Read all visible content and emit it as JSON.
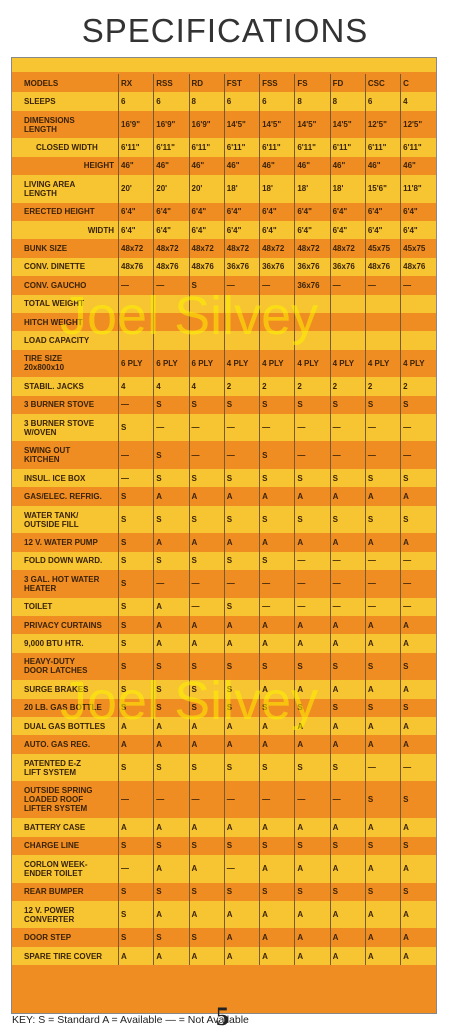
{
  "header": {
    "title": "SPECIFICATIONS"
  },
  "table": {
    "columns": [
      "MODELS",
      "RX",
      "RSS",
      "RD",
      "FST",
      "FSS",
      "FS",
      "FD",
      "CSC",
      "C"
    ],
    "rows": [
      {
        "label": "SLEEPS",
        "cells": [
          "6",
          "6",
          "8",
          "6",
          "6",
          "8",
          "8",
          "6",
          "4"
        ]
      },
      {
        "label": "DIMENSIONS\nLENGTH",
        "cells": [
          "16'9\"",
          "16'9\"",
          "16'9\"",
          "14'5\"",
          "14'5\"",
          "14'5\"",
          "14'5\"",
          "12'5\"",
          "12'5\""
        ]
      },
      {
        "label": "CLOSED WIDTH",
        "cells": [
          "6'11\"",
          "6'11\"",
          "6'11\"",
          "6'11\"",
          "6'11\"",
          "6'11\"",
          "6'11\"",
          "6'11\"",
          "6'11\""
        ]
      },
      {
        "label": "HEIGHT",
        "cells": [
          "46\"",
          "46\"",
          "46\"",
          "46\"",
          "46\"",
          "46\"",
          "46\"",
          "46\"",
          "46\""
        ]
      },
      {
        "label": "LIVING AREA\nLENGTH",
        "cells": [
          "20'",
          "20'",
          "20'",
          "18'",
          "18'",
          "18'",
          "18'",
          "15'6\"",
          "11'8\""
        ]
      },
      {
        "label": "ERECTED HEIGHT",
        "cells": [
          "6'4\"",
          "6'4\"",
          "6'4\"",
          "6'4\"",
          "6'4\"",
          "6'4\"",
          "6'4\"",
          "6'4\"",
          "6'4\""
        ]
      },
      {
        "label": "WIDTH",
        "cells": [
          "6'4\"",
          "6'4\"",
          "6'4\"",
          "6'4\"",
          "6'4\"",
          "6'4\"",
          "6'4\"",
          "6'4\"",
          "6'4\""
        ]
      },
      {
        "label": "BUNK SIZE",
        "cells": [
          "48x72",
          "48x72",
          "48x72",
          "48x72",
          "48x72",
          "48x72",
          "48x72",
          "45x75",
          "45x75"
        ]
      },
      {
        "label": "CONV. DINETTE",
        "cells": [
          "48x76",
          "48x76",
          "48x76",
          "36x76",
          "36x76",
          "36x76",
          "36x76",
          "48x76",
          "48x76"
        ]
      },
      {
        "label": "CONV. GAUCHO",
        "cells": [
          "—",
          "—",
          "S",
          "—",
          "—",
          "36x76",
          "—",
          "—",
          "—"
        ]
      },
      {
        "label": "TOTAL WEIGHT",
        "cells": []
      },
      {
        "label": "HITCH WEIGHT",
        "cells": []
      },
      {
        "label": "LOAD CAPACITY",
        "cells": []
      },
      {
        "label": "TIRE SIZE\n20x800x10",
        "cells": [
          "6 PLY",
          "6 PLY",
          "6 PLY",
          "4 PLY",
          "4 PLY",
          "4 PLY",
          "4 PLY",
          "4 PLY",
          "4 PLY"
        ]
      },
      {
        "label": "STABIL. JACKS",
        "cells": [
          "4",
          "4",
          "4",
          "2",
          "2",
          "2",
          "2",
          "2",
          "2"
        ]
      },
      {
        "label": "3 BURNER STOVE",
        "cells": [
          "—",
          "S",
          "S",
          "S",
          "S",
          "S",
          "S",
          "S",
          "S"
        ]
      },
      {
        "label": "3 BURNER STOVE\nW/OVEN",
        "cells": [
          "S",
          "—",
          "—",
          "—",
          "—",
          "—",
          "—",
          "—",
          "—"
        ]
      },
      {
        "label": "SWING OUT\nKITCHEN",
        "cells": [
          "—",
          "S",
          "—",
          "—",
          "S",
          "—",
          "—",
          "—",
          "—"
        ]
      },
      {
        "label": "INSUL. ICE BOX",
        "cells": [
          "—",
          "S",
          "S",
          "S",
          "S",
          "S",
          "S",
          "S",
          "S"
        ]
      },
      {
        "label": "GAS/ELEC. REFRIG.",
        "cells": [
          "S",
          "A",
          "A",
          "A",
          "A",
          "A",
          "A",
          "A",
          "A"
        ]
      },
      {
        "label": "WATER TANK/\nOUTSIDE FILL",
        "cells": [
          "S",
          "S",
          "S",
          "S",
          "S",
          "S",
          "S",
          "S",
          "S"
        ]
      },
      {
        "label": "12 V. WATER PUMP",
        "cells": [
          "S",
          "A",
          "A",
          "A",
          "A",
          "A",
          "A",
          "A",
          "A"
        ]
      },
      {
        "label": "FOLD DOWN WARD.",
        "cells": [
          "S",
          "S",
          "S",
          "S",
          "S",
          "—",
          "—",
          "—",
          "—"
        ]
      },
      {
        "label": "3 GAL. HOT WATER\nHEATER",
        "cells": [
          "S",
          "—",
          "—",
          "—",
          "—",
          "—",
          "—",
          "—",
          "—"
        ]
      },
      {
        "label": "TOILET",
        "cells": [
          "S",
          "A",
          "—",
          "S",
          "—",
          "—",
          "—",
          "—",
          "—"
        ]
      },
      {
        "label": "PRIVACY CURTAINS",
        "cells": [
          "S",
          "A",
          "A",
          "A",
          "A",
          "A",
          "A",
          "A",
          "A"
        ]
      },
      {
        "label": "9,000 BTU HTR.",
        "cells": [
          "S",
          "A",
          "A",
          "A",
          "A",
          "A",
          "A",
          "A",
          "A"
        ]
      },
      {
        "label": "HEAVY-DUTY\nDOOR LATCHES",
        "cells": [
          "S",
          "S",
          "S",
          "S",
          "S",
          "S",
          "S",
          "S",
          "S"
        ]
      },
      {
        "label": "SURGE BRAKES",
        "cells": [
          "S",
          "S",
          "S",
          "S",
          "A",
          "A",
          "A",
          "A",
          "A"
        ]
      },
      {
        "label": "20 LB. GAS BOTTLE",
        "cells": [
          "S",
          "S",
          "S",
          "S",
          "S",
          "S",
          "S",
          "S",
          "S"
        ]
      },
      {
        "label": "DUAL GAS BOTTLES",
        "cells": [
          "A",
          "A",
          "A",
          "A",
          "A",
          "A",
          "A",
          "A",
          "A"
        ]
      },
      {
        "label": "AUTO. GAS REG.",
        "cells": [
          "A",
          "A",
          "A",
          "A",
          "A",
          "A",
          "A",
          "A",
          "A"
        ]
      },
      {
        "label": "PATENTED E-Z\nLIFT SYSTEM",
        "cells": [
          "S",
          "S",
          "S",
          "S",
          "S",
          "S",
          "S",
          "—",
          "—"
        ]
      },
      {
        "label": "OUTSIDE SPRING\nLOADED ROOF\nLIFTER SYSTEM",
        "cells": [
          "—",
          "—",
          "—",
          "—",
          "—",
          "—",
          "—",
          "S",
          "S"
        ]
      },
      {
        "label": "BATTERY CASE",
        "cells": [
          "A",
          "A",
          "A",
          "A",
          "A",
          "A",
          "A",
          "A",
          "A"
        ]
      },
      {
        "label": "CHARGE LINE",
        "cells": [
          "S",
          "S",
          "S",
          "S",
          "S",
          "S",
          "S",
          "S",
          "S"
        ]
      },
      {
        "label": "CORLON WEEK-\nENDER TOILET",
        "cells": [
          "—",
          "A",
          "A",
          "—",
          "A",
          "A",
          "A",
          "A",
          "A"
        ]
      },
      {
        "label": "REAR BUMPER",
        "cells": [
          "S",
          "S",
          "S",
          "S",
          "S",
          "S",
          "S",
          "S",
          "S"
        ]
      },
      {
        "label": "12 V. POWER\nCONVERTER",
        "cells": [
          "S",
          "A",
          "A",
          "A",
          "A",
          "A",
          "A",
          "A",
          "A"
        ]
      },
      {
        "label": "DOOR STEP",
        "cells": [
          "S",
          "S",
          "S",
          "A",
          "A",
          "A",
          "A",
          "A",
          "A"
        ]
      },
      {
        "label": "SPARE TIRE COVER",
        "cells": [
          "A",
          "A",
          "A",
          "A",
          "A",
          "A",
          "A",
          "A",
          "A"
        ]
      }
    ]
  },
  "watermark": "Joel Silvey",
  "footer": {
    "key": "KEY:  S = Standard   A = Available  — = Not Available",
    "page": "5"
  }
}
